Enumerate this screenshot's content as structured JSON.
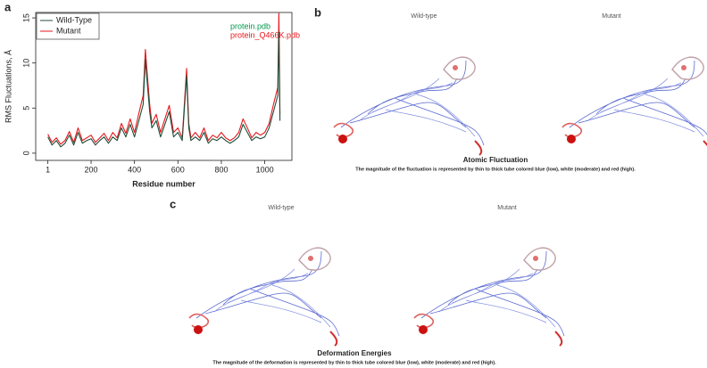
{
  "chart_data": {
    "type": "line",
    "panel_label": "a",
    "x_label": "Residue number",
    "y_label": "RMS Fluctuations, Å",
    "x": [
      1,
      20,
      40,
      60,
      80,
      100,
      120,
      140,
      160,
      180,
      200,
      220,
      240,
      260,
      280,
      300,
      320,
      340,
      360,
      380,
      400,
      420,
      440,
      450,
      460,
      470,
      480,
      500,
      520,
      540,
      560,
      580,
      600,
      620,
      640,
      650,
      660,
      680,
      700,
      720,
      740,
      760,
      780,
      800,
      820,
      840,
      860,
      880,
      900,
      920,
      940,
      960,
      980,
      1000,
      1020,
      1040,
      1060,
      1065,
      1070
    ],
    "series": [
      {
        "name": "Mutant",
        "color": "#e8161b",
        "values": [
          2.1,
          1.2,
          1.7,
          1,
          1.4,
          2.4,
          1.2,
          2.8,
          1.4,
          1.7,
          2,
          1.2,
          1.7,
          2.2,
          1.4,
          2.3,
          1.7,
          3.3,
          2.2,
          3.8,
          2.3,
          4.4,
          6.4,
          11.5,
          8.4,
          5.4,
          3.3,
          4.3,
          2.3,
          3.8,
          5.3,
          2.3,
          2.8,
          1.7,
          9.4,
          3.3,
          1.7,
          2.3,
          1.7,
          2.8,
          1.4,
          2,
          1.7,
          2.3,
          1.7,
          1.4,
          1.7,
          2.3,
          3.8,
          2.8,
          1.7,
          2.3,
          2,
          2.3,
          3.3,
          5.4,
          7.3,
          15.5,
          4.3
        ]
      },
      {
        "name": "Wild-Type",
        "color": "#1f4f3a",
        "values": [
          1.8,
          0.9,
          1.4,
          0.7,
          1.1,
          2,
          0.9,
          2.3,
          1.1,
          1.4,
          1.6,
          0.9,
          1.4,
          1.8,
          1.1,
          1.8,
          1.4,
          2.8,
          1.8,
          3.2,
          1.8,
          3.6,
          5.4,
          10.4,
          7.4,
          4.6,
          2.8,
          3.6,
          1.8,
          3.2,
          4.6,
          1.8,
          2.3,
          1.4,
          8.6,
          2.8,
          1.4,
          1.8,
          1.4,
          2.3,
          1.1,
          1.6,
          1.4,
          1.8,
          1.4,
          1.1,
          1.4,
          1.8,
          3.2,
          2.3,
          1.4,
          1.8,
          1.6,
          1.8,
          2.8,
          4.6,
          6.4,
          13.5,
          3.6
        ]
      }
    ],
    "legend_order": [
      1,
      0
    ],
    "annotations": [
      {
        "text": "protein.pdb",
        "color": "#00994d"
      },
      {
        "text": "protein_Q466K.pdb",
        "color": "#e8161b"
      }
    ],
    "xlim": [
      -55,
      1125
    ],
    "ylim": [
      -0.8,
      15.6
    ],
    "xticks": [
      1,
      200,
      400,
      600,
      800,
      1000
    ],
    "yticks": [
      0,
      5,
      10,
      15
    ],
    "legend": "upper left"
  },
  "panel_b": {
    "label": "b",
    "left_title": "Wild-type",
    "right_title": "Mutant",
    "title": "Atomic Fluctuation",
    "caption": "The magnitude of the fluctuation is represented by thin to thick tube colored blue (low), white (moderate) and red (high)."
  },
  "panel_c": {
    "label": "c",
    "left_title": "Wild-type",
    "right_title": "Mutant",
    "title": "Deformation Energies",
    "caption": "The magnitude of the deformation is represented by thin to thick tube colored blue (low), white (moderate) and red (high)."
  }
}
